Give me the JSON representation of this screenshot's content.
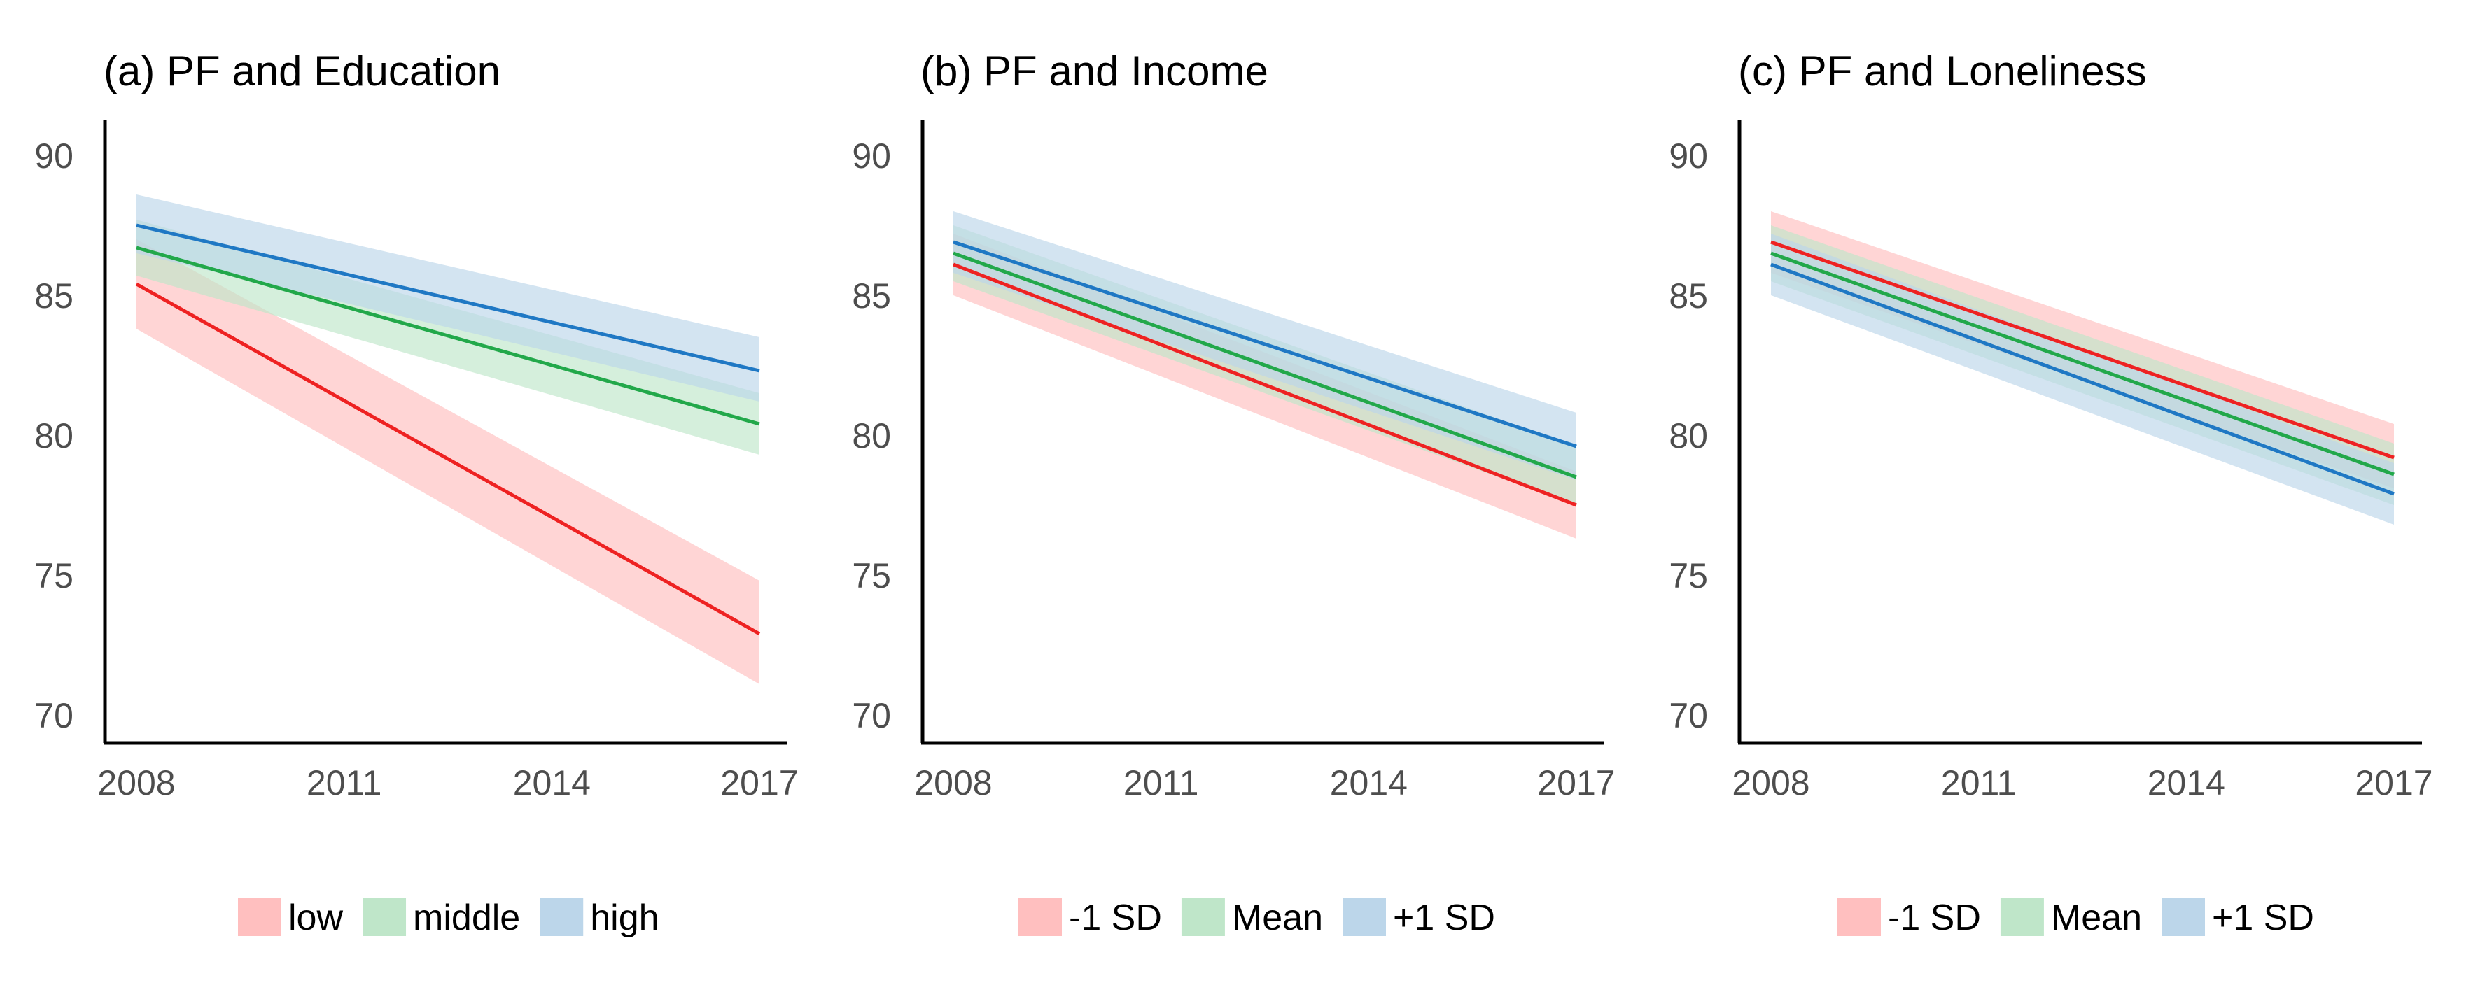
{
  "chart_data": [
    {
      "type": "line",
      "title": "(a) PF and Education",
      "xlabel": "",
      "ylabel": "",
      "x_ticks": [
        2008,
        2011,
        2014,
        2017
      ],
      "y_ticks": [
        70,
        75,
        80,
        85,
        90
      ],
      "xlim": [
        2008,
        2017
      ],
      "ylim": [
        69,
        91
      ],
      "grid": false,
      "legend": "bottom",
      "series": [
        {
          "name": "low",
          "color": "#ee2222",
          "band_color": "#ffbfbf",
          "x": [
            2008,
            2017
          ],
          "values": [
            85.4,
            72.9
          ],
          "lower": [
            83.8,
            71.1
          ],
          "upper": [
            87.0,
            74.8
          ]
        },
        {
          "name": "middle",
          "color": "#22a84a",
          "band_color": "#bfe6c9",
          "x": [
            2008,
            2017
          ],
          "values": [
            86.7,
            80.4
          ],
          "lower": [
            85.7,
            79.3
          ],
          "upper": [
            87.7,
            81.5
          ]
        },
        {
          "name": "high",
          "color": "#1f78c4",
          "band_color": "#bcd6ea",
          "x": [
            2008,
            2017
          ],
          "values": [
            87.5,
            82.3
          ],
          "lower": [
            86.5,
            81.2
          ],
          "upper": [
            88.6,
            83.5
          ]
        }
      ]
    },
    {
      "type": "line",
      "title": "(b) PF and Income",
      "xlabel": "",
      "ylabel": "",
      "x_ticks": [
        2008,
        2011,
        2014,
        2017
      ],
      "y_ticks": [
        70,
        75,
        80,
        85,
        90
      ],
      "xlim": [
        2008,
        2017
      ],
      "ylim": [
        69,
        91
      ],
      "grid": false,
      "legend": "bottom",
      "series": [
        {
          "name": "-1 SD",
          "color": "#ee2222",
          "band_color": "#ffbfbf",
          "x": [
            2008,
            2017
          ],
          "values": [
            86.1,
            77.5
          ],
          "lower": [
            85.0,
            76.3
          ],
          "upper": [
            87.2,
            78.7
          ]
        },
        {
          "name": "Mean",
          "color": "#22a84a",
          "band_color": "#bfe6c9",
          "x": [
            2008,
            2017
          ],
          "values": [
            86.5,
            78.5
          ],
          "lower": [
            85.5,
            77.5
          ],
          "upper": [
            87.5,
            79.6
          ]
        },
        {
          "name": "+1 SD",
          "color": "#1f78c4",
          "band_color": "#bcd6ea",
          "x": [
            2008,
            2017
          ],
          "values": [
            86.9,
            79.6
          ],
          "lower": [
            85.8,
            78.4
          ],
          "upper": [
            88.0,
            80.8
          ]
        }
      ]
    },
    {
      "type": "line",
      "title": "(c) PF and Loneliness",
      "xlabel": "",
      "ylabel": "",
      "x_ticks": [
        2008,
        2011,
        2014,
        2017
      ],
      "y_ticks": [
        70,
        75,
        80,
        85,
        90
      ],
      "xlim": [
        2008,
        2017
      ],
      "ylim": [
        69,
        91
      ],
      "grid": false,
      "legend": "bottom",
      "series": [
        {
          "name": "-1 SD",
          "color": "#ee2222",
          "band_color": "#ffbfbf",
          "x": [
            2008,
            2017
          ],
          "values": [
            86.9,
            79.2
          ],
          "lower": [
            85.8,
            78.1
          ],
          "upper": [
            88.0,
            80.4
          ]
        },
        {
          "name": "Mean",
          "color": "#22a84a",
          "band_color": "#bfe6c9",
          "x": [
            2008,
            2017
          ],
          "values": [
            86.5,
            78.6
          ],
          "lower": [
            85.5,
            77.5
          ],
          "upper": [
            87.5,
            79.7
          ]
        },
        {
          "name": "+1 SD",
          "color": "#1f78c4",
          "band_color": "#bcd6ea",
          "x": [
            2008,
            2017
          ],
          "values": [
            86.1,
            77.9
          ],
          "lower": [
            85.0,
            76.8
          ],
          "upper": [
            87.2,
            79.0
          ]
        }
      ]
    }
  ]
}
